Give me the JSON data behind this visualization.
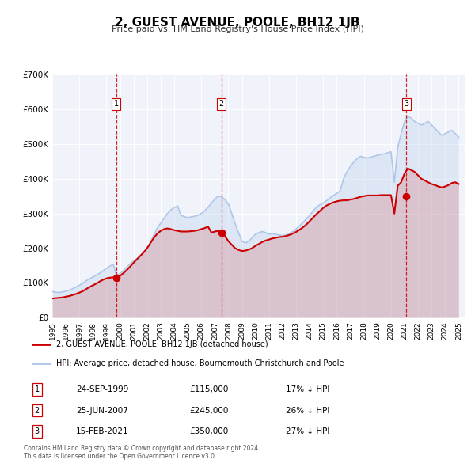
{
  "title": "2, GUEST AVENUE, POOLE, BH12 1JB",
  "subtitle": "Price paid vs. HM Land Registry's House Price Index (HPI)",
  "xlabel": "",
  "ylabel": "",
  "ylim": [
    0,
    700000
  ],
  "yticks": [
    0,
    100000,
    200000,
    300000,
    400000,
    500000,
    600000,
    700000
  ],
  "ytick_labels": [
    "£0",
    "£100K",
    "£200K",
    "£300K",
    "£400K",
    "£500K",
    "£600K",
    "£700K"
  ],
  "xlim_start": 1995.0,
  "xlim_end": 2025.5,
  "hpi_color": "#aec6e8",
  "price_color": "#cc0000",
  "sale_marker_color": "#cc0000",
  "vline_color": "#cc0000",
  "bg_color": "#e8f0f8",
  "plot_bg": "#f0f4fa",
  "grid_color": "#ffffff",
  "legend_border_color": "#aaaaaa",
  "transaction_label_bg": "#ffffff",
  "transaction_label_border": "#cc3333",
  "sales": [
    {
      "num": 1,
      "date_str": "24-SEP-1999",
      "year": 1999.73,
      "price": 115000,
      "hpi_pct": "17%",
      "x_vline": 1999.73
    },
    {
      "num": 2,
      "date_str": "25-JUN-2007",
      "year": 2007.48,
      "price": 245000,
      "hpi_pct": "26%",
      "x_vline": 2007.48
    },
    {
      "num": 3,
      "date_str": "15-FEB-2021",
      "year": 2021.12,
      "price": 350000,
      "hpi_pct": "27%",
      "x_vline": 2021.12
    }
  ],
  "legend_line1": "2, GUEST AVENUE, POOLE, BH12 1JB (detached house)",
  "legend_line2": "HPI: Average price, detached house, Bournemouth Christchurch and Poole",
  "footnote": "Contains HM Land Registry data © Crown copyright and database right 2024.\nThis data is licensed under the Open Government Licence v3.0.",
  "hpi_data_x": [
    1995.0,
    1995.25,
    1995.5,
    1995.75,
    1996.0,
    1996.25,
    1996.5,
    1996.75,
    1997.0,
    1997.25,
    1997.5,
    1997.75,
    1998.0,
    1998.25,
    1998.5,
    1998.75,
    1999.0,
    1999.25,
    1999.5,
    1999.75,
    2000.0,
    2000.25,
    2000.5,
    2000.75,
    2001.0,
    2001.25,
    2001.5,
    2001.75,
    2002.0,
    2002.25,
    2002.5,
    2002.75,
    2003.0,
    2003.25,
    2003.5,
    2003.75,
    2004.0,
    2004.25,
    2004.5,
    2004.75,
    2005.0,
    2005.25,
    2005.5,
    2005.75,
    2006.0,
    2006.25,
    2006.5,
    2006.75,
    2007.0,
    2007.25,
    2007.5,
    2007.75,
    2008.0,
    2008.25,
    2008.5,
    2008.75,
    2009.0,
    2009.25,
    2009.5,
    2009.75,
    2010.0,
    2010.25,
    2010.5,
    2010.75,
    2011.0,
    2011.25,
    2011.5,
    2011.75,
    2012.0,
    2012.25,
    2012.5,
    2012.75,
    2013.0,
    2013.25,
    2013.5,
    2013.75,
    2014.0,
    2014.25,
    2014.5,
    2014.75,
    2015.0,
    2015.25,
    2015.5,
    2015.75,
    2016.0,
    2016.25,
    2016.5,
    2016.75,
    2017.0,
    2017.25,
    2017.5,
    2017.75,
    2018.0,
    2018.25,
    2018.5,
    2018.75,
    2019.0,
    2019.25,
    2019.5,
    2019.75,
    2020.0,
    2020.25,
    2020.5,
    2020.75,
    2021.0,
    2021.25,
    2021.5,
    2021.75,
    2022.0,
    2022.25,
    2022.5,
    2022.75,
    2023.0,
    2023.25,
    2023.5,
    2023.75,
    2024.0,
    2024.25,
    2024.5,
    2024.75,
    2025.0
  ],
  "hpi_data_y": [
    75000,
    73000,
    72000,
    74000,
    76000,
    79000,
    83000,
    88000,
    93000,
    99000,
    106000,
    112000,
    117000,
    122000,
    128000,
    135000,
    142000,
    148000,
    154000,
    120000,
    127000,
    135000,
    145000,
    155000,
    163000,
    170000,
    177000,
    187000,
    200000,
    218000,
    238000,
    258000,
    272000,
    287000,
    300000,
    310000,
    317000,
    322000,
    295000,
    291000,
    288000,
    290000,
    292000,
    295000,
    300000,
    308000,
    318000,
    330000,
    342000,
    350000,
    348000,
    340000,
    328000,
    300000,
    270000,
    245000,
    220000,
    215000,
    220000,
    230000,
    240000,
    245000,
    248000,
    245000,
    240000,
    242000,
    240000,
    238000,
    236000,
    238000,
    242000,
    248000,
    255000,
    264000,
    274000,
    284000,
    295000,
    307000,
    318000,
    325000,
    330000,
    337000,
    345000,
    352000,
    358000,
    365000,
    400000,
    420000,
    435000,
    448000,
    458000,
    465000,
    462000,
    460000,
    462000,
    465000,
    468000,
    470000,
    472000,
    475000,
    478000,
    390000,
    490000,
    530000,
    565000,
    580000,
    575000,
    565000,
    560000,
    555000,
    560000,
    565000,
    555000,
    545000,
    535000,
    525000,
    530000,
    535000,
    540000,
    530000,
    520000
  ],
  "price_data_x": [
    1995.0,
    1995.25,
    1995.5,
    1995.75,
    1996.0,
    1996.25,
    1996.5,
    1996.75,
    1997.0,
    1997.25,
    1997.5,
    1997.75,
    1998.0,
    1998.25,
    1998.5,
    1998.75,
    1999.0,
    1999.25,
    1999.5,
    1999.75,
    2000.0,
    2000.25,
    2000.5,
    2000.75,
    2001.0,
    2001.25,
    2001.5,
    2001.75,
    2002.0,
    2002.25,
    2002.5,
    2002.75,
    2003.0,
    2003.25,
    2003.5,
    2003.75,
    2004.0,
    2004.25,
    2004.5,
    2004.75,
    2005.0,
    2005.25,
    2005.5,
    2005.75,
    2006.0,
    2006.25,
    2006.5,
    2006.75,
    2007.0,
    2007.25,
    2007.5,
    2007.75,
    2008.0,
    2008.25,
    2008.5,
    2008.75,
    2009.0,
    2009.25,
    2009.5,
    2009.75,
    2010.0,
    2010.25,
    2010.5,
    2010.75,
    2011.0,
    2011.25,
    2011.5,
    2011.75,
    2012.0,
    2012.25,
    2012.5,
    2012.75,
    2013.0,
    2013.25,
    2013.5,
    2013.75,
    2014.0,
    2014.25,
    2014.5,
    2014.75,
    2015.0,
    2015.25,
    2015.5,
    2015.75,
    2016.0,
    2016.25,
    2016.5,
    2016.75,
    2017.0,
    2017.25,
    2017.5,
    2017.75,
    2018.0,
    2018.25,
    2018.5,
    2018.75,
    2019.0,
    2019.25,
    2019.5,
    2019.75,
    2020.0,
    2020.25,
    2020.5,
    2020.75,
    2021.0,
    2021.25,
    2021.5,
    2021.75,
    2022.0,
    2022.25,
    2022.5,
    2022.75,
    2023.0,
    2023.25,
    2023.5,
    2023.75,
    2024.0,
    2024.25,
    2024.5,
    2024.75,
    2025.0
  ],
  "price_data_y": [
    55000,
    56000,
    57000,
    58000,
    60000,
    62000,
    65000,
    68000,
    72000,
    76000,
    82000,
    88000,
    93000,
    98000,
    104000,
    109000,
    113000,
    115000,
    116000,
    115000,
    120000,
    128000,
    137000,
    147000,
    158000,
    168000,
    178000,
    188000,
    200000,
    215000,
    230000,
    242000,
    250000,
    255000,
    257000,
    255000,
    252000,
    250000,
    248000,
    248000,
    248000,
    249000,
    250000,
    252000,
    255000,
    258000,
    262000,
    245000,
    248000,
    250000,
    245000,
    235000,
    220000,
    210000,
    200000,
    195000,
    192000,
    193000,
    196000,
    200000,
    207000,
    212000,
    218000,
    222000,
    225000,
    228000,
    230000,
    232000,
    233000,
    235000,
    238000,
    242000,
    247000,
    253000,
    260000,
    268000,
    278000,
    288000,
    298000,
    307000,
    316000,
    323000,
    328000,
    332000,
    335000,
    337000,
    338000,
    338000,
    340000,
    342000,
    345000,
    348000,
    350000,
    352000,
    352000,
    352000,
    352000,
    353000,
    353000,
    353000,
    353000,
    300000,
    380000,
    390000,
    415000,
    430000,
    425000,
    420000,
    410000,
    400000,
    395000,
    390000,
    385000,
    382000,
    378000,
    375000,
    378000,
    382000,
    388000,
    390000,
    385000
  ]
}
